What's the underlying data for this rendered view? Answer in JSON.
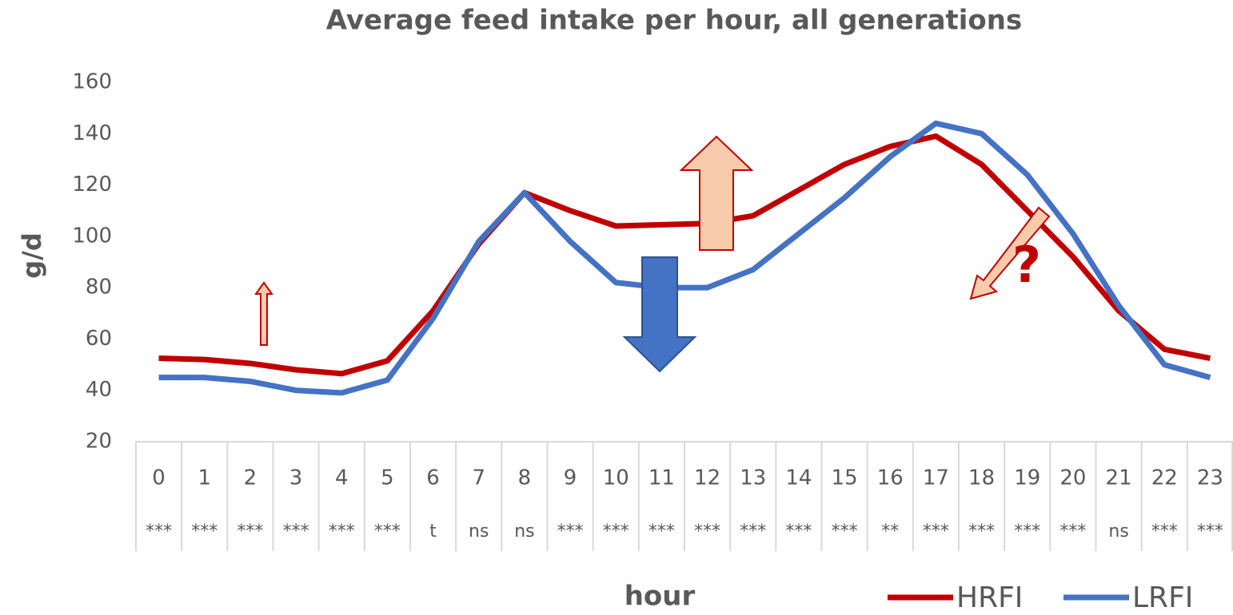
{
  "chart_data": {
    "type": "line",
    "title": "Average feed intake per hour, all generations",
    "x_label": "hour",
    "y_label": "g/d",
    "categories": [
      "0",
      "1",
      "2",
      "3",
      "4",
      "5",
      "6",
      "7",
      "8",
      "9",
      "10",
      "11",
      "12",
      "13",
      "14",
      "15",
      "16",
      "17",
      "18",
      "19",
      "20",
      "21",
      "22",
      "23"
    ],
    "significance": [
      "***",
      "***",
      "***",
      "***",
      "***",
      "***",
      "t",
      "ns",
      "ns",
      "***",
      "***",
      "***",
      "***",
      "***",
      "***",
      "***",
      "**",
      "***",
      "***",
      "***",
      "***",
      "ns",
      "***",
      "***"
    ],
    "series": [
      {
        "name": "HRFI",
        "color": "#c00000",
        "values": [
          52.5,
          52,
          50.5,
          48,
          46.5,
          51.5,
          71,
          97,
          117,
          110,
          104,
          104.5,
          105,
          108,
          118,
          128,
          135,
          139,
          128,
          110,
          92,
          71,
          56,
          52.5
        ]
      },
      {
        "name": "LRFI",
        "color": "#4472c4",
        "values": [
          45,
          45,
          43.5,
          40,
          39,
          44,
          68,
          98,
          117,
          98,
          82,
          80,
          80,
          87,
          101,
          115,
          131,
          144,
          140,
          124,
          101,
          73,
          50,
          45
        ]
      }
    ],
    "ylim": [
      20,
      160
    ],
    "yticks": [
      20,
      40,
      60,
      80,
      100,
      120,
      140,
      160
    ],
    "grid": false,
    "annotations": [
      "?"
    ]
  }
}
